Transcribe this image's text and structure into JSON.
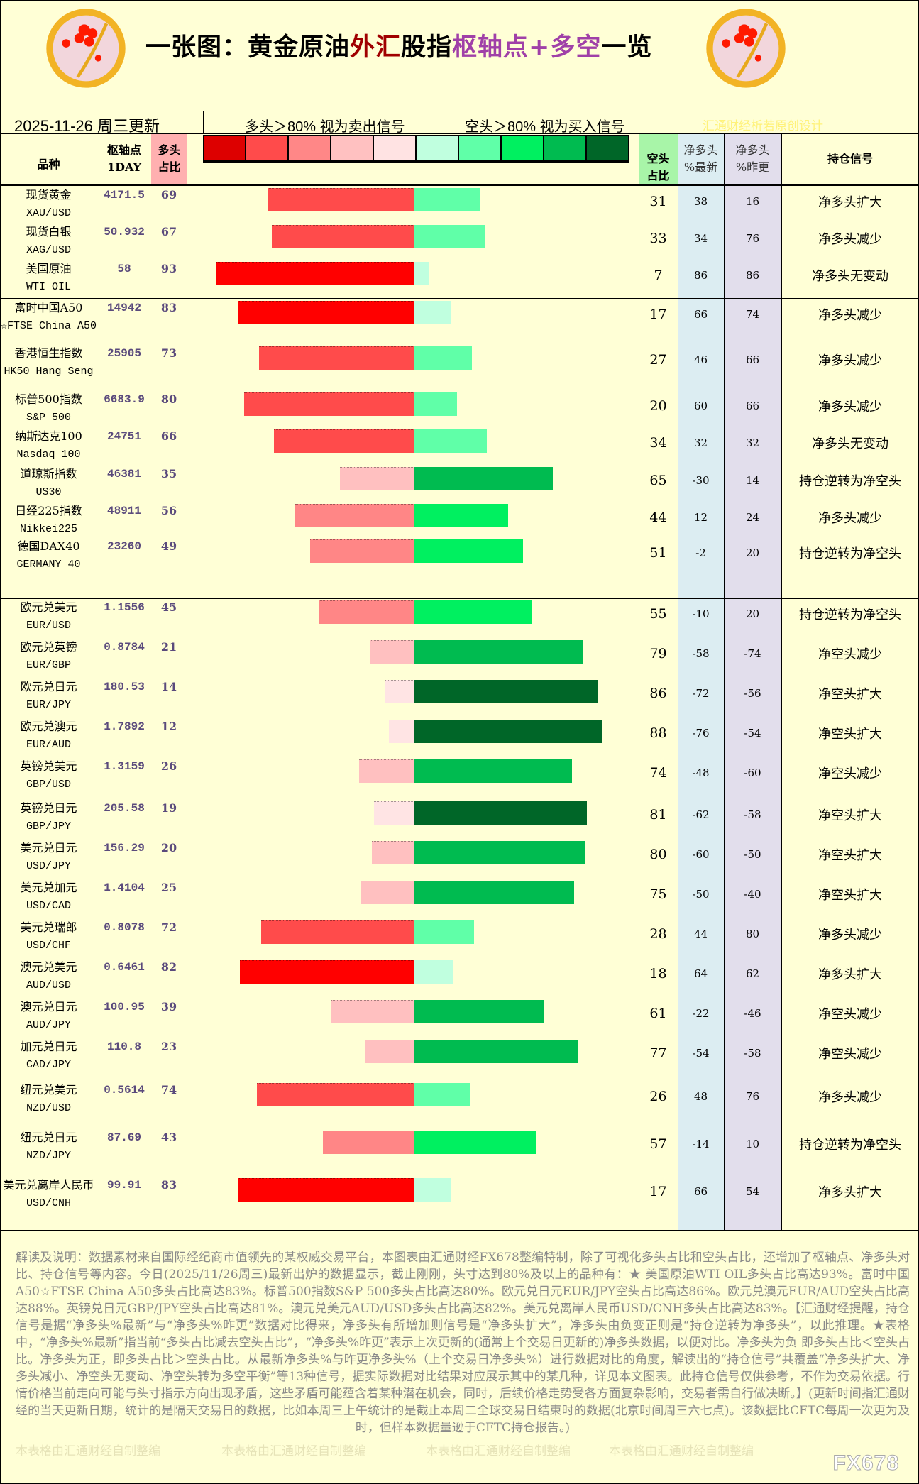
{
  "header": {
    "title_parts": [
      {
        "text": "一张图：黄金原油",
        "color": "#000000"
      },
      {
        "text": "外汇",
        "color": "#a00000"
      },
      {
        "text": "股指",
        "color": "#000000"
      },
      {
        "text": "枢轴点+多空",
        "color": "#a040a8"
      },
      {
        "text": "一览",
        "color": "#000000"
      }
    ],
    "logo_text": "fx678 yly",
    "date": "2025-11-26 周三更新",
    "legend_long": "多头＞80% 视为卖出信号",
    "legend_short": "空头＞80% 视为买入信号",
    "credit": "汇通财经析若原创设计",
    "legend_colors": [
      "#dd0000",
      "#ff4b4b",
      "#ff8787",
      "#ffc1c1",
      "#ffe3e3",
      "#c0ffdf",
      "#60ffa8",
      "#00f060",
      "#00bb50",
      "#006628"
    ]
  },
  "columns": {
    "name": "品种",
    "pivot": "枢轴点",
    "pivot_sub": "1DAY",
    "long": "多头\n占比",
    "short": "空头\n占比",
    "net_latest": "净多头\n%最新",
    "net_prev": "净多头\n%昨更",
    "signal": "持仓信号"
  },
  "bar_colors": {
    "long": {
      "very_high": "#ff0000",
      "high": "#ff4b4b",
      "mid": "#ff8686",
      "low": "#ffc0c0",
      "very_low": "#ffe4e4"
    },
    "short": {
      "very_high": "#006628",
      "high": "#00bb50",
      "mid": "#00f060",
      "low": "#60ffa8",
      "very_low": "#c0ffdf"
    }
  },
  "groups": [
    {
      "rows": [
        {
          "cn": "现货黄金",
          "en": "XAU/USD",
          "pivot": "4171.5",
          "long": 69,
          "short": 31,
          "net_latest": 38,
          "net_prev": 16,
          "signal": "净多头扩大"
        },
        {
          "cn": "现货白银",
          "en": "XAG/USD",
          "pivot": "50.932",
          "long": 67,
          "short": 33,
          "net_latest": 34,
          "net_prev": 76,
          "signal": "净多头减少"
        },
        {
          "cn": "美国原油",
          "en": "WTI OIL",
          "pivot": "58",
          "long": 93,
          "short": 7,
          "net_latest": 86,
          "net_prev": 86,
          "signal": "净多头无变动"
        }
      ]
    },
    {
      "rows": [
        {
          "cn": "富时中国A50",
          "en": "☆FTSE China A50",
          "pivot": "14942",
          "long": 83,
          "short": 17,
          "net_latest": 66,
          "net_prev": 74,
          "signal": "净多头减少"
        },
        {
          "cn": "香港恒生指数",
          "en": "HK50 Hang Seng",
          "pivot": "25905",
          "long": 73,
          "short": 27,
          "net_latest": 46,
          "net_prev": 66,
          "signal": "净多头减少"
        },
        {
          "cn": "标普500指数",
          "en": "S&P 500",
          "pivot": "6683.9",
          "long": 80,
          "short": 20,
          "net_latest": 60,
          "net_prev": 66,
          "signal": "净多头减少"
        },
        {
          "cn": "纳斯达克100",
          "en": "Nasdaq 100",
          "pivot": "24751",
          "long": 66,
          "short": 34,
          "net_latest": 32,
          "net_prev": 32,
          "signal": "净多头无变动"
        },
        {
          "cn": "道琼斯指数",
          "en": "US30",
          "pivot": "46381",
          "long": 35,
          "short": 65,
          "net_latest": -30,
          "net_prev": 14,
          "signal": "持仓逆转为净空头"
        },
        {
          "cn": "日经225指数",
          "en": "Nikkei225",
          "pivot": "48911",
          "long": 56,
          "short": 44,
          "net_latest": 12,
          "net_prev": 24,
          "signal": "净多头减少"
        },
        {
          "cn": "德国DAX40",
          "en": "GERMANY 40",
          "pivot": "23260",
          "long": 49,
          "short": 51,
          "net_latest": -2,
          "net_prev": 20,
          "signal": "持仓逆转为净空头"
        }
      ]
    },
    {
      "rows": [
        {
          "cn": "欧元兑美元",
          "en": "EUR/USD",
          "pivot": "1.1556",
          "long": 45,
          "short": 55,
          "net_latest": -10,
          "net_prev": 20,
          "signal": "持仓逆转为净空头"
        },
        {
          "cn": "欧元兑英镑",
          "en": "EUR/GBP",
          "pivot": "0.8784",
          "long": 21,
          "short": 79,
          "net_latest": -58,
          "net_prev": -74,
          "signal": "净空头减少"
        },
        {
          "cn": "欧元兑日元",
          "en": "EUR/JPY",
          "pivot": "180.53",
          "long": 14,
          "short": 86,
          "net_latest": -72,
          "net_prev": -56,
          "signal": "净空头扩大"
        },
        {
          "cn": "欧元兑澳元",
          "en": "EUR/AUD",
          "pivot": "1.7892",
          "long": 12,
          "short": 88,
          "net_latest": -76,
          "net_prev": -54,
          "signal": "净空头扩大"
        },
        {
          "cn": "英镑兑美元",
          "en": "GBP/USD",
          "pivot": "1.3159",
          "long": 26,
          "short": 74,
          "net_latest": -48,
          "net_prev": -60,
          "signal": "净空头减少"
        },
        {
          "cn": "英镑兑日元",
          "en": "GBP/JPY",
          "pivot": "205.58",
          "long": 19,
          "short": 81,
          "net_latest": -62,
          "net_prev": -58,
          "signal": "净空头扩大"
        },
        {
          "cn": "美元兑日元",
          "en": "USD/JPY",
          "pivot": "156.29",
          "long": 20,
          "short": 80,
          "net_latest": -60,
          "net_prev": -50,
          "signal": "净空头扩大"
        },
        {
          "cn": "美元兑加元",
          "en": "USD/CAD",
          "pivot": "1.4104",
          "long": 25,
          "short": 75,
          "net_latest": -50,
          "net_prev": -40,
          "signal": "净空头扩大"
        },
        {
          "cn": "美元兑瑞郎",
          "en": "USD/CHF",
          "pivot": "0.8078",
          "long": 72,
          "short": 28,
          "net_latest": 44,
          "net_prev": 80,
          "signal": "净多头减少"
        },
        {
          "cn": "澳元兑美元",
          "en": "AUD/USD",
          "pivot": "0.6461",
          "long": 82,
          "short": 18,
          "net_latest": 64,
          "net_prev": 62,
          "signal": "净多头扩大"
        },
        {
          "cn": "澳元兑日元",
          "en": "AUD/JPY",
          "pivot": "100.95",
          "long": 39,
          "short": 61,
          "net_latest": -22,
          "net_prev": -46,
          "signal": "净空头减少"
        },
        {
          "cn": "加元兑日元",
          "en": "CAD/JPY",
          "pivot": "110.8",
          "long": 23,
          "short": 77,
          "net_latest": -54,
          "net_prev": -58,
          "signal": "净空头减少"
        },
        {
          "cn": "纽元兑美元",
          "en": "NZD/USD",
          "pivot": "0.5614",
          "long": 74,
          "short": 26,
          "net_latest": 48,
          "net_prev": 76,
          "signal": "净多头减少"
        },
        {
          "cn": "纽元兑日元",
          "en": "NZD/JPY",
          "pivot": "87.69",
          "long": 43,
          "short": 57,
          "net_latest": -14,
          "net_prev": 10,
          "signal": "持仓逆转为净空头"
        },
        {
          "cn": "美元兑离岸人民币",
          "en": "USD/CNH",
          "pivot": "99.91",
          "long": 83,
          "short": 17,
          "net_latest": 66,
          "net_prev": 54,
          "signal": "净多头扩大"
        }
      ]
    }
  ],
  "footer": {
    "text": "解读及说明：数据素材来自国际经纪商市值领先的某权威交易平台，本图表由汇通财经FX678整编特制，除了可视化多头占比和空头占比，还增加了枢轴点、净多头对比、持仓信号等内容。今日(2025/11/26周三)最新出炉的数据显示，截止刚刚，头寸达到80%及以上的品种有：★ 美国原油WTI OIL多头占比高达93%。富时中国A50☆FTSE China A50多头占比高达83%。标普500指数S&P 500多头占比高达80%。欧元兑日元EUR/JPY空头占比高达86%。欧元兑澳元EUR/AUD空头占比高达88%。英镑兑日元GBP/JPY空头占比高达81%。澳元兑美元AUD/USD多头占比高达82%。美元兑离岸人民币USD/CNH多头占比高达83%。【汇通财经提醒，持仓信号是据“净多头%最新”与“净多头%昨更”数据对比得来，净多头有所增加则信号是“净多头扩大”，净多头由负变正则是“持仓逆转为净多头”，以此推理。★表格中，“净多头%最新”指当前“多头占比减去空头占比”，“净多头%昨更”表示上次更新的(通常上个交易日更新的)净多头数据，以便对比。净多头为负 即多头占比＜空头占比。净多头为正，即多头占比＞空头占比。从最新净多头%与昨更净多头%（上个交易日净多头%）进行数据对比的角度，解读出的“持仓信号”共覆盖“净多头扩大、净多头减小、净空头无变动、净空头转为多空平衡”等13种信号，据实际数据对比结果对应展示其中的某几种，详见本文图表。此持仓信号仅供参考，不作为交易依据。行情价格当前走向可能与头寸指示方向出现矛盾，这些矛盾可能蕴含着某种潜在机会，同时，后续价格走势受各方面复杂影响，交易者需自行做决断。】(更新时间指汇通财经的当天更新日期，统计的是隔天交易日的数据，比如本周三上午统计的是截止本周二全球交易日结束时的数据(北京时间周三六七点)。该数据比CFTC每周一次更为及时，但样本数据量逊于CFTC持仓报告。)",
    "watermark": "本表格由汇通财经自制整编",
    "brand": "FX678"
  }
}
